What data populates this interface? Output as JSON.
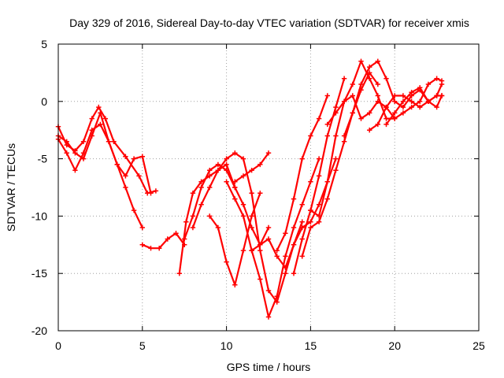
{
  "chart_data": {
    "type": "scatter",
    "title": "Day 329 of 2016, Sidereal Day-to-day VTEC variation (SDTVAR) for receiver xmis",
    "xlabel": "GPS time / hours",
    "ylabel": "SDTVAR / TECUs",
    "xlim": [
      0,
      25
    ],
    "ylim": [
      -20,
      5
    ],
    "xticks": [
      0,
      5,
      10,
      15,
      20,
      25
    ],
    "yticks": [
      -20,
      -15,
      -10,
      -5,
      0,
      5
    ],
    "grid": true,
    "marker": "plus",
    "color": "#ff0000",
    "series": [
      {
        "x": [
          0.0,
          0.5,
          1.0,
          1.5,
          2.0,
          2.4,
          2.8,
          3.3,
          4.0,
          4.8,
          5.3,
          5.8
        ],
        "y": [
          -2.2,
          -3.8,
          -4.3,
          -3.5,
          -1.5,
          -0.5,
          -1.5,
          -3.5,
          -4.8,
          -6.5,
          -8.0,
          -7.8
        ]
      },
      {
        "x": [
          0.0,
          0.5,
          1.0,
          1.5,
          2.0,
          2.5,
          3.0,
          3.5,
          4.0,
          4.5,
          5.0
        ],
        "y": [
          -3.3,
          -4.5,
          -6.0,
          -4.5,
          -2.5,
          -2.0,
          -3.5,
          -5.5,
          -7.5,
          -9.5,
          -11.0
        ]
      },
      {
        "x": [
          0.0,
          0.5,
          1.0,
          1.5,
          2.0,
          2.5,
          3.0,
          3.5,
          4.0,
          4.5,
          5.0,
          5.5
        ],
        "y": [
          -3.0,
          -3.5,
          -4.5,
          -5.0,
          -3.0,
          -1.0,
          -3.5,
          -5.5,
          -6.5,
          -5.0,
          -4.8,
          -8.0
        ]
      },
      {
        "x": [
          5.0,
          5.5,
          6.0,
          6.5,
          7.0,
          7.5
        ],
        "y": [
          -12.5,
          -12.8,
          -12.8,
          -12.0,
          -11.5,
          -12.5
        ]
      },
      {
        "x": [
          7.2,
          7.6,
          8.0,
          8.5,
          9.0,
          9.5,
          10.0,
          10.5,
          11.0,
          11.5,
          12.0,
          12.5
        ],
        "y": [
          -15.0,
          -10.5,
          -8.0,
          -7.0,
          -6.5,
          -6.0,
          -5.5,
          -7.5,
          -9.0,
          -11.0,
          -12.5,
          -11.0
        ]
      },
      {
        "x": [
          7.5,
          8.0,
          8.5,
          9.0,
          9.5,
          10.0,
          10.5
        ],
        "y": [
          -12.0,
          -10.0,
          -7.5,
          -6.0,
          -5.5,
          -6.0,
          -7.5
        ]
      },
      {
        "x": [
          8.0,
          8.5,
          9.0,
          9.5,
          10.0,
          10.5,
          11.0,
          11.5,
          12.0,
          12.5,
          13.0,
          13.5,
          14.0,
          14.5
        ],
        "y": [
          -11.0,
          -9.0,
          -7.5,
          -6.0,
          -5.0,
          -4.5,
          -5.0,
          -8.0,
          -13.0,
          -16.5,
          -17.5,
          -15.0,
          -12.5,
          -10.5
        ]
      },
      {
        "x": [
          9.0,
          9.5,
          10.0,
          10.5,
          11.0,
          11.5,
          12.0
        ],
        "y": [
          -10.0,
          -11.0,
          -14.0,
          -16.0,
          -13.0,
          -10.0,
          -8.0
        ]
      },
      {
        "x": [
          10.0,
          10.5,
          11.0,
          11.5,
          12.0,
          12.5,
          13.0,
          13.5,
          14.0,
          14.5,
          15.0,
          15.5
        ],
        "y": [
          -7.0,
          -8.5,
          -10.0,
          -13.0,
          -15.5,
          -18.8,
          -17.0,
          -13.5,
          -11.0,
          -9.0,
          -7.0,
          -5.0
        ]
      },
      {
        "x": [
          11.5,
          12.0,
          12.5,
          13.0,
          13.5,
          14.0,
          14.5,
          15.0,
          15.5,
          16.0,
          16.5
        ],
        "y": [
          -13.0,
          -12.5,
          -12.0,
          -13.5,
          -14.5,
          -12.5,
          -11.0,
          -10.5,
          -9.0,
          -7.0,
          -5.0
        ]
      },
      {
        "x": [
          10.5,
          11.0,
          11.5,
          12.0,
          12.5
        ],
        "y": [
          -7.0,
          -6.5,
          -6.0,
          -5.5,
          -4.5
        ]
      },
      {
        "x": [
          13.0,
          13.5,
          14.0,
          14.5,
          15.0,
          15.5,
          16.0
        ],
        "y": [
          -13.0,
          -11.5,
          -8.5,
          -5.0,
          -3.0,
          -1.5,
          0.5
        ]
      },
      {
        "x": [
          14.0,
          14.5,
          15.0,
          15.5,
          16.0,
          16.5,
          17.0
        ],
        "y": [
          -15.0,
          -12.0,
          -9.5,
          -6.5,
          -3.0,
          -0.5,
          2.0
        ]
      },
      {
        "x": [
          14.5,
          15.0,
          15.5,
          16.0,
          16.5,
          17.0,
          17.5,
          18.0,
          18.5,
          19.0
        ],
        "y": [
          -13.5,
          -11.0,
          -10.5,
          -8.5,
          -6.0,
          -3.5,
          -1.0,
          1.0,
          2.5,
          1.5
        ]
      },
      {
        "x": [
          15.0,
          15.5,
          16.0,
          16.5,
          17.0,
          17.5,
          18.0,
          18.5,
          19.0,
          19.5,
          20.0
        ],
        "y": [
          -9.5,
          -10.0,
          -7.0,
          -3.0,
          0.0,
          1.5,
          3.5,
          2.0,
          0.5,
          -1.5,
          -1.5
        ]
      },
      {
        "x": [
          16.0,
          16.5,
          17.0,
          17.5,
          18.0,
          18.5,
          19.0,
          19.5,
          20.0,
          20.5,
          21.0,
          21.5,
          22.0,
          22.5,
          22.8
        ],
        "y": [
          -2.0,
          -1.0,
          0.0,
          0.5,
          -1.5,
          -1.0,
          0.0,
          -0.5,
          -1.5,
          -1.0,
          -0.5,
          0.0,
          1.5,
          2.0,
          1.8
        ]
      },
      {
        "x": [
          17.0,
          17.5,
          18.0,
          18.5,
          19.0,
          19.5,
          20.0,
          20.5,
          21.0,
          21.5,
          22.0,
          22.5,
          22.8
        ],
        "y": [
          -3.0,
          -1.0,
          1.5,
          3.0,
          3.5,
          2.0,
          0.0,
          -0.5,
          0.5,
          1.0,
          0.0,
          0.5,
          1.5
        ]
      },
      {
        "x": [
          18.5,
          19.0,
          19.5,
          20.0,
          20.5,
          21.0,
          21.5,
          22.0,
          22.5,
          22.8
        ],
        "y": [
          -2.5,
          -2.0,
          -0.5,
          0.5,
          0.5,
          0.0,
          -0.5,
          0.0,
          0.5,
          0.5
        ]
      },
      {
        "x": [
          19.5,
          20.0,
          20.5,
          21.0,
          21.5,
          22.0,
          22.5,
          22.8
        ],
        "y": [
          -2.0,
          -1.0,
          0.0,
          0.8,
          1.2,
          0.0,
          -0.5,
          0.5
        ]
      }
    ]
  }
}
